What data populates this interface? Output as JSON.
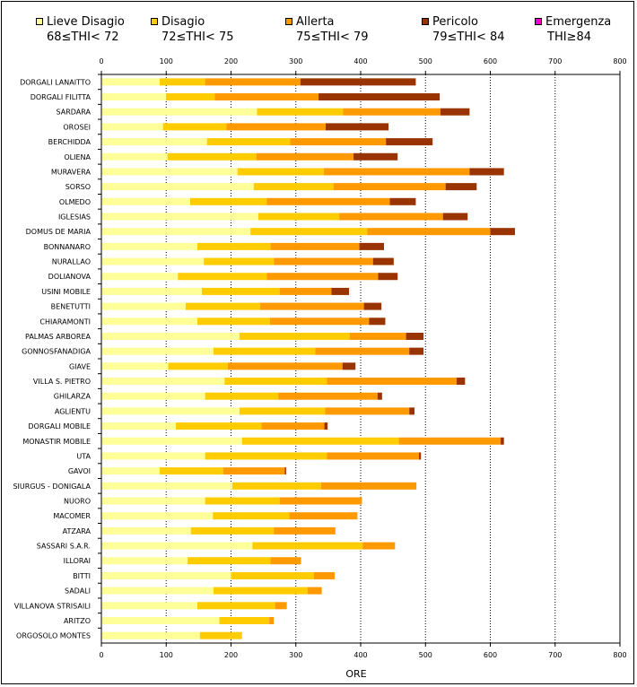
{
  "chart_data": {
    "type": "bar",
    "orientation": "horizontal",
    "stacked": true,
    "title": "",
    "xlabel": "ORE",
    "ylabel": "",
    "xlim": [
      0,
      800
    ],
    "xticks": [
      0,
      100,
      200,
      300,
      400,
      500,
      600,
      700,
      800
    ],
    "grid": "vertical-dotted",
    "legend_position": "top",
    "categories": [
      "DORGALI LANAITTO",
      "DORGALI FILITTA",
      "SARDARA",
      "OROSEI",
      "BERCHIDDA",
      "OLIENA",
      "MURAVERA",
      "SORSO",
      "OLMEDO",
      "IGLESIAS",
      "DOMUS DE MARIA",
      "BONNANARO",
      "NURALLAO",
      "DOLIANOVA",
      "USINI MOBILE",
      "BENETUTTI",
      "CHIARAMONTI",
      "PALMAS ARBOREA",
      "GONNOSFANADIGA",
      "GIAVE",
      "VILLA S. PIETRO",
      "GHILARZA",
      "AGLIENTU",
      "DORGALI MOBILE",
      "MONASTIR MOBILE",
      "UTA",
      "GAVOI",
      "SIURGUS - DONIGALA",
      "NUORO",
      "MACOMER",
      "ATZARA",
      "SASSARI S.A.R.",
      "ILLORAI",
      "BITTI",
      "SADALI",
      "VILLANOVA STRISAILI",
      "ARITZO",
      "ORGOSOLO MONTES"
    ],
    "series": [
      {
        "name": "Lieve Disagio",
        "range": "68≤THI< 72",
        "color": "#ffff99",
        "values": [
          90,
          100,
          240,
          95,
          163,
          102,
          210,
          235,
          137,
          242,
          230,
          148,
          158,
          118,
          155,
          130,
          148,
          213,
          173,
          103,
          190,
          160,
          213,
          115,
          217,
          160,
          90,
          202,
          160,
          172,
          138,
          233,
          133,
          200,
          173,
          148,
          182,
          152
        ]
      },
      {
        "name": "Disagio",
        "range": "72≤THI< 75",
        "color": "#ffcc00",
        "values": [
          70,
          75,
          133,
          98,
          128,
          137,
          133,
          123,
          118,
          125,
          180,
          113,
          108,
          137,
          120,
          115,
          112,
          170,
          157,
          92,
          158,
          113,
          132,
          132,
          242,
          188,
          98,
          137,
          115,
          118,
          128,
          170,
          128,
          128,
          145,
          120,
          77,
          65
        ]
      },
      {
        "name": "Allerta",
        "range": "75≤THI< 79",
        "color": "#ff9900",
        "values": [
          147,
          160,
          150,
          153,
          148,
          150,
          225,
          173,
          190,
          160,
          190,
          137,
          153,
          172,
          80,
          160,
          153,
          87,
          145,
          177,
          200,
          153,
          130,
          97,
          157,
          142,
          95,
          147,
          127,
          105,
          95,
          50,
          47,
          32,
          22,
          18,
          7,
          0
        ]
      },
      {
        "name": "Pericolo",
        "range": "79≤THI< 84",
        "color": "#993300",
        "values": [
          178,
          187,
          45,
          97,
          72,
          68,
          53,
          48,
          40,
          38,
          38,
          38,
          32,
          30,
          27,
          27,
          25,
          27,
          22,
          20,
          13,
          7,
          8,
          5,
          5,
          3,
          2,
          0,
          0,
          0,
          0,
          0,
          0,
          0,
          0,
          0,
          0,
          0
        ]
      },
      {
        "name": "Emergenza",
        "range": "THI≥84",
        "color": "#ff00cc",
        "values": [
          0,
          0,
          0,
          0,
          0,
          0,
          0,
          0,
          0,
          0,
          0,
          0,
          0,
          0,
          0,
          0,
          0,
          0,
          0,
          0,
          0,
          0,
          0,
          0,
          0,
          0,
          0,
          0,
          0,
          0,
          0,
          0,
          0,
          0,
          0,
          0,
          0,
          0
        ]
      }
    ]
  }
}
